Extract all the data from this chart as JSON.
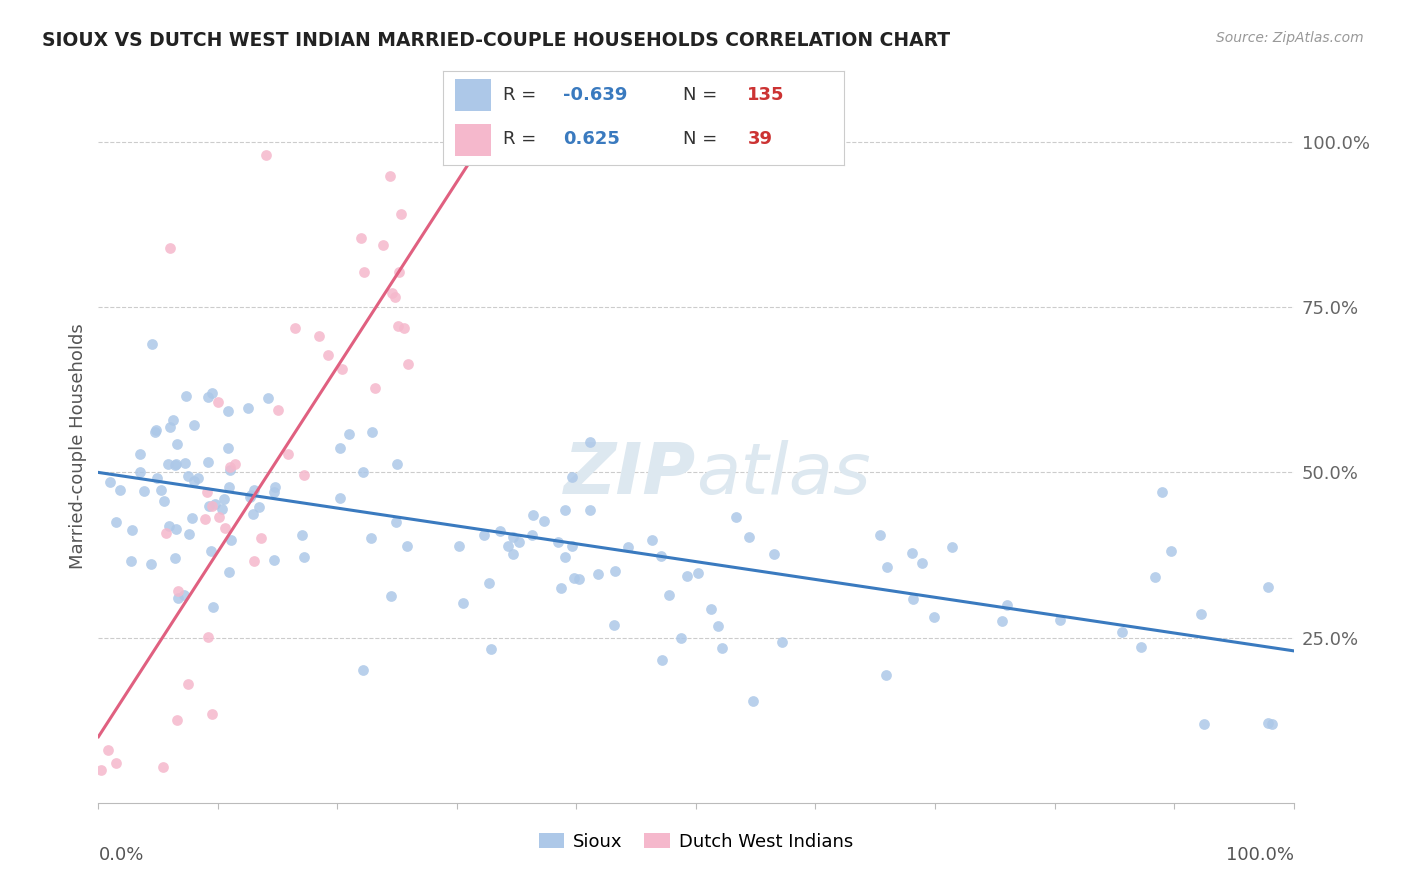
{
  "title": "SIOUX VS DUTCH WEST INDIAN MARRIED-COUPLE HOUSEHOLDS CORRELATION CHART",
  "source_text": "Source: ZipAtlas.com",
  "ylabel": "Married-couple Households",
  "ytick_labels": [
    "25.0%",
    "50.0%",
    "75.0%",
    "100.0%"
  ],
  "ytick_values": [
    0.25,
    0.5,
    0.75,
    1.0
  ],
  "legend_label_sioux": "Sioux",
  "legend_label_dutch": "Dutch West Indians",
  "sioux_color": "#adc8e8",
  "dutch_color": "#f5b8cc",
  "sioux_line_color": "#3a7abf",
  "dutch_line_color": "#e06080",
  "background_color": "#ffffff",
  "grid_color": "#cccccc",
  "R_sioux": -0.639,
  "N_sioux": 135,
  "R_dutch": 0.625,
  "N_dutch": 39,
  "sioux_intercept": 0.5,
  "sioux_slope": -0.27,
  "dutch_intercept": 0.1,
  "dutch_slope": 2.8,
  "watermark": "ZIPatlas",
  "watermark_color": "#dde8f0"
}
